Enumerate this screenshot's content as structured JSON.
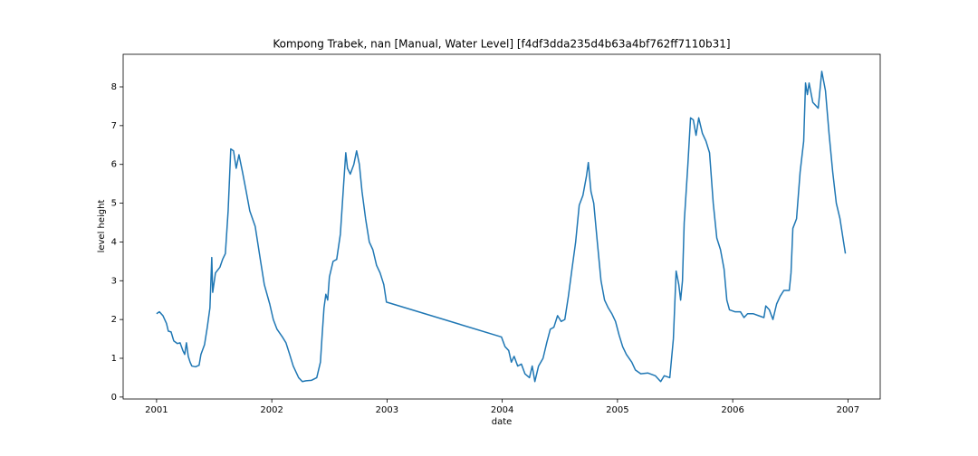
{
  "chart_data": {
    "type": "line",
    "title": "Kompong Trabek, nan [Manual, Water Level] [f4df3dda235d4b63a4bf762ff7110b31]",
    "x_label": "date",
    "y_label": "level height",
    "color": "#1f77b4",
    "x": [
      2001.0,
      2001.024,
      2001.055,
      2001.086,
      2001.102,
      2001.126,
      2001.149,
      2001.181,
      2001.204,
      2001.228,
      2001.244,
      2001.259,
      2001.275,
      2001.291,
      2001.306,
      2001.338,
      2001.369,
      2001.385,
      2001.416,
      2001.44,
      2001.463,
      2001.479,
      2001.487,
      2001.511,
      2001.55,
      2001.573,
      2001.597,
      2001.621,
      2001.644,
      2001.668,
      2001.691,
      2001.715,
      2001.746,
      2001.778,
      2001.809,
      2001.856,
      2001.903,
      2001.935,
      2001.982,
      2002.013,
      2002.045,
      2002.092,
      2002.123,
      2002.155,
      2002.186,
      2002.233,
      2002.265,
      2002.296,
      2002.343,
      2002.39,
      2002.422,
      2002.437,
      2002.453,
      2002.469,
      2002.485,
      2002.5,
      2002.532,
      2002.563,
      2002.595,
      2002.626,
      2002.642,
      2002.657,
      2002.681,
      2002.712,
      2002.736,
      2002.76,
      2002.783,
      2002.814,
      2002.846,
      2002.877,
      2002.909,
      2002.94,
      2002.972,
      2002.995,
      2003.993,
      2004.024,
      2004.056,
      2004.079,
      2004.103,
      2004.134,
      2004.166,
      2004.197,
      2004.236,
      2004.26,
      2004.283,
      2004.315,
      2004.354,
      2004.386,
      2004.417,
      2004.448,
      2004.48,
      2004.511,
      2004.543,
      2004.574,
      2004.605,
      2004.637,
      2004.668,
      2004.7,
      2004.731,
      2004.747,
      2004.77,
      2004.794,
      2004.825,
      2004.857,
      2004.888,
      2004.92,
      2004.951,
      2004.983,
      2005.014,
      2005.045,
      2005.077,
      2005.124,
      2005.155,
      2005.202,
      2005.265,
      2005.328,
      2005.375,
      2005.406,
      2005.454,
      2005.485,
      2005.509,
      2005.532,
      2005.548,
      2005.564,
      2005.579,
      2005.611,
      2005.634,
      2005.658,
      2005.682,
      2005.705,
      2005.737,
      2005.768,
      2005.799,
      2005.831,
      2005.862,
      2005.894,
      2005.925,
      2005.949,
      2005.972,
      2006.019,
      2006.067,
      2006.098,
      2006.129,
      2006.177,
      2006.224,
      2006.271,
      2006.287,
      2006.318,
      2006.349,
      2006.381,
      2006.412,
      2006.444,
      2006.491,
      2006.506,
      2006.522,
      2006.554,
      2006.585,
      2006.616,
      2006.632,
      2006.648,
      2006.663,
      2006.695,
      2006.742,
      2006.773,
      2006.805,
      2006.836,
      2006.868,
      2006.899,
      2006.931,
      2006.962,
      2006.978
    ],
    "values": [
      2.15,
      2.2,
      2.1,
      1.9,
      1.7,
      1.68,
      1.45,
      1.38,
      1.4,
      1.2,
      1.1,
      1.4,
      1.05,
      0.9,
      0.8,
      0.78,
      0.82,
      1.1,
      1.35,
      1.8,
      2.3,
      3.6,
      2.7,
      3.2,
      3.35,
      3.55,
      3.7,
      4.8,
      6.4,
      6.35,
      5.9,
      6.25,
      5.8,
      5.3,
      4.8,
      4.4,
      3.5,
      2.9,
      2.4,
      2.0,
      1.75,
      1.55,
      1.4,
      1.1,
      0.8,
      0.5,
      0.4,
      0.42,
      0.43,
      0.5,
      0.9,
      1.6,
      2.3,
      2.65,
      2.5,
      3.1,
      3.5,
      3.55,
      4.2,
      5.6,
      6.3,
      5.9,
      5.75,
      6.0,
      6.35,
      6.0,
      5.3,
      4.6,
      4.0,
      3.8,
      3.4,
      3.2,
      2.9,
      2.45,
      1.55,
      1.3,
      1.2,
      0.9,
      1.05,
      0.8,
      0.85,
      0.6,
      0.5,
      0.8,
      0.4,
      0.8,
      1.0,
      1.4,
      1.75,
      1.8,
      2.1,
      1.95,
      2.0,
      2.6,
      3.3,
      4.0,
      4.95,
      5.2,
      5.7,
      6.05,
      5.3,
      5.0,
      4.0,
      3.0,
      2.5,
      2.3,
      2.15,
      1.95,
      1.6,
      1.3,
      1.1,
      0.9,
      0.7,
      0.6,
      0.62,
      0.55,
      0.4,
      0.55,
      0.5,
      1.5,
      3.25,
      2.9,
      2.5,
      3.0,
      4.5,
      6.0,
      7.2,
      7.15,
      6.75,
      7.2,
      6.8,
      6.6,
      6.3,
      5.0,
      4.1,
      3.8,
      3.3,
      2.5,
      2.25,
      2.2,
      2.2,
      2.05,
      2.15,
      2.15,
      2.1,
      2.05,
      2.35,
      2.25,
      2.0,
      2.4,
      2.6,
      2.75,
      2.75,
      3.2,
      4.35,
      4.6,
      5.8,
      6.6,
      8.1,
      7.8,
      8.1,
      7.6,
      7.45,
      8.4,
      7.9,
      6.8,
      5.8,
      5.0,
      4.6,
      4.0,
      3.7
    ],
    "xlim": [
      2000.71,
      2007.28
    ],
    "xticks": [
      2001,
      2002,
      2003,
      2004,
      2005,
      2006,
      2007
    ],
    "ylim": [
      -0.05,
      8.84
    ],
    "yticks": [
      0,
      1,
      2,
      3,
      4,
      5,
      6,
      7,
      8
    ]
  }
}
